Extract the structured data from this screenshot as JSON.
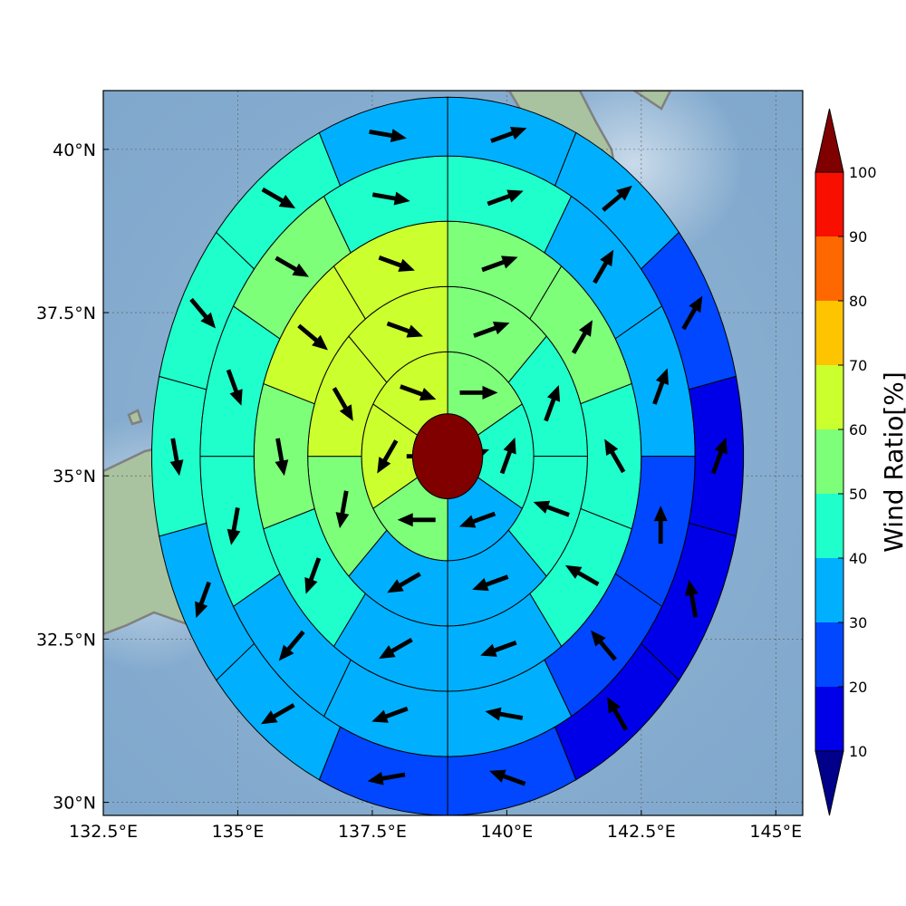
{
  "chart_data": {
    "type": "heatmap",
    "subtype": "polar-sector-map-with-wind-vectors",
    "title": "",
    "xlabel": "",
    "ylabel": "",
    "x_ticks": [
      "132.5°E",
      "135°E",
      "137.5°E",
      "140°E",
      "142.5°E",
      "145°E"
    ],
    "x_tick_values": [
      132.5,
      135,
      137.5,
      140,
      142.5,
      145
    ],
    "y_ticks": [
      "30°N",
      "32.5°N",
      "35°N",
      "37.5°N",
      "40°N"
    ],
    "y_tick_values": [
      30,
      32.5,
      35,
      37.5,
      40
    ],
    "xlim": [
      132.5,
      145.5
    ],
    "ylim": [
      29.8,
      40.9
    ],
    "grid": true,
    "center": {
      "lon": 138.9,
      "lat": 35.3
    },
    "center_value_level": 100,
    "ring_radii_deg": [
      0.65,
      1.6,
      2.6,
      3.6,
      4.6,
      5.5
    ],
    "sectors_per_ring": [
      2,
      6,
      8,
      10,
      12,
      14
    ],
    "ring_values": [
      [
        70,
        50
      ],
      [
        50,
        40,
        30,
        50,
        60,
        60
      ],
      [
        50,
        40,
        40,
        30,
        30,
        50,
        60,
        60
      ],
      [
        50,
        50,
        40,
        40,
        30,
        30,
        40,
        50,
        60,
        60
      ],
      [
        40,
        30,
        30,
        20,
        20,
        30,
        30,
        30,
        40,
        40,
        50,
        40
      ],
      [
        30,
        30,
        20,
        10,
        10,
        10,
        20,
        20,
        30,
        30,
        40,
        40,
        40,
        30
      ]
    ],
    "ring_arrow_directions": [
      [
        70,
        90
      ],
      [
        90,
        20,
        -110,
        -90,
        -150,
        110
      ],
      [
        70,
        20,
        -70,
        -110,
        -120,
        -170,
        150,
        110
      ],
      [
        70,
        30,
        -30,
        -60,
        -110,
        -120,
        -160,
        170,
        130,
        110
      ],
      [
        70,
        30,
        20,
        0,
        -40,
        -80,
        -110,
        -140,
        -170,
        160,
        120,
        100
      ],
      [
        70,
        50,
        30,
        20,
        -10,
        -30,
        -70,
        -100,
        -120,
        -160,
        170,
        140,
        120,
        100
      ]
    ],
    "colorbar": {
      "label": "Wind Ratio[%]",
      "ticks": [
        "10",
        "20",
        "30",
        "40",
        "50",
        "60",
        "70",
        "80",
        "90",
        "100"
      ],
      "levels": [
        0,
        10,
        20,
        30,
        40,
        50,
        60,
        70,
        80,
        90,
        100,
        110
      ],
      "colors": [
        "#00008b",
        "#0000e8",
        "#0047ff",
        "#00b0ff",
        "#1fffcc",
        "#7dff7a",
        "#ccff2e",
        "#ffc400",
        "#ff6800",
        "#f80f00",
        "#800000"
      ],
      "extend": "both"
    }
  }
}
